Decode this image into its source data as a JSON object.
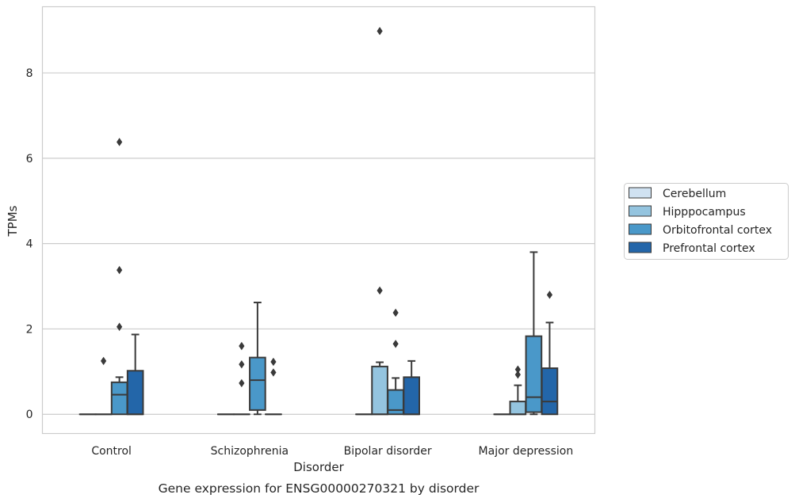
{
  "chart_data": {
    "type": "box",
    "caption": "Gene expression for ENSG00000270321 by disorder",
    "xlabel": "Disorder",
    "ylabel": "TPMs",
    "ylim": [
      -0.45,
      9.55
    ],
    "yticks": [
      0,
      2,
      4,
      6,
      8
    ],
    "grid": "horizontal",
    "legend_position": "right-center",
    "categories": [
      "Control",
      "Schizophrenia",
      "Bipolar disorder",
      "Major depression"
    ],
    "series": [
      {
        "name": "Cerebellum",
        "color": "#d0e2f2",
        "boxes": [
          {
            "category": "Control",
            "whislo": 0,
            "q1": 0,
            "median": 0,
            "q3": 0,
            "whishi": 0,
            "fliers": []
          },
          {
            "category": "Schizophrenia",
            "whislo": 0,
            "q1": 0,
            "median": 0,
            "q3": 0,
            "whishi": 0,
            "fliers": []
          },
          {
            "category": "Bipolar disorder",
            "whislo": 0,
            "q1": 0,
            "median": 0,
            "q3": 0,
            "whishi": 0,
            "fliers": []
          },
          {
            "category": "Major depression",
            "whislo": 0,
            "q1": 0,
            "median": 0,
            "q3": 0,
            "whishi": 0,
            "fliers": []
          }
        ]
      },
      {
        "name": "Hipppocampus",
        "color": "#94c4df",
        "boxes": [
          {
            "category": "Control",
            "whislo": 0,
            "q1": 0,
            "median": 0,
            "q3": 0,
            "whishi": 0,
            "fliers": [
              1.25
            ]
          },
          {
            "category": "Schizophrenia",
            "whislo": 0,
            "q1": 0,
            "median": 0,
            "q3": 0,
            "whishi": 0,
            "fliers": [
              1.17,
              0.73,
              1.6
            ]
          },
          {
            "category": "Bipolar disorder",
            "whislo": 0,
            "q1": 0,
            "median": 0,
            "q3": 1.12,
            "whishi": 1.22,
            "fliers": [
              2.9,
              8.98
            ]
          },
          {
            "category": "Major depression",
            "whislo": 0,
            "q1": 0,
            "median": 0,
            "q3": 0.3,
            "whishi": 0.68,
            "fliers": [
              0.93,
              1.05
            ]
          }
        ]
      },
      {
        "name": "Orbitofrontal cortex",
        "color": "#4a98c9",
        "boxes": [
          {
            "category": "Control",
            "whislo": 0,
            "q1": 0,
            "median": 0.46,
            "q3": 0.75,
            "whishi": 0.87,
            "fliers": [
              2.05,
              3.38,
              6.38
            ]
          },
          {
            "category": "Schizophrenia",
            "whislo": 0,
            "q1": 0.1,
            "median": 0.8,
            "q3": 1.33,
            "whishi": 2.62,
            "fliers": []
          },
          {
            "category": "Bipolar disorder",
            "whislo": 0,
            "q1": 0,
            "median": 0.1,
            "q3": 0.57,
            "whishi": 0.85,
            "fliers": [
              1.65,
              2.38
            ]
          },
          {
            "category": "Major depression",
            "whislo": 0,
            "q1": 0.05,
            "median": 0.4,
            "q3": 1.83,
            "whishi": 3.8,
            "fliers": []
          }
        ]
      },
      {
        "name": "Prefrontal cortex",
        "color": "#2366a9",
        "boxes": [
          {
            "category": "Control",
            "whislo": 0,
            "q1": 0,
            "median": 0,
            "q3": 1.02,
            "whishi": 1.87,
            "fliers": []
          },
          {
            "category": "Schizophrenia",
            "whislo": 0,
            "q1": 0,
            "median": 0,
            "q3": 0,
            "whishi": 0,
            "fliers": [
              0.98,
              1.23
            ]
          },
          {
            "category": "Bipolar disorder",
            "whislo": 0,
            "q1": 0,
            "median": 0,
            "q3": 0.87,
            "whishi": 1.25,
            "fliers": []
          },
          {
            "category": "Major depression",
            "whislo": 0,
            "q1": 0,
            "median": 0.3,
            "q3": 1.08,
            "whishi": 2.15,
            "fliers": [
              2.8
            ]
          }
        ]
      }
    ]
  }
}
